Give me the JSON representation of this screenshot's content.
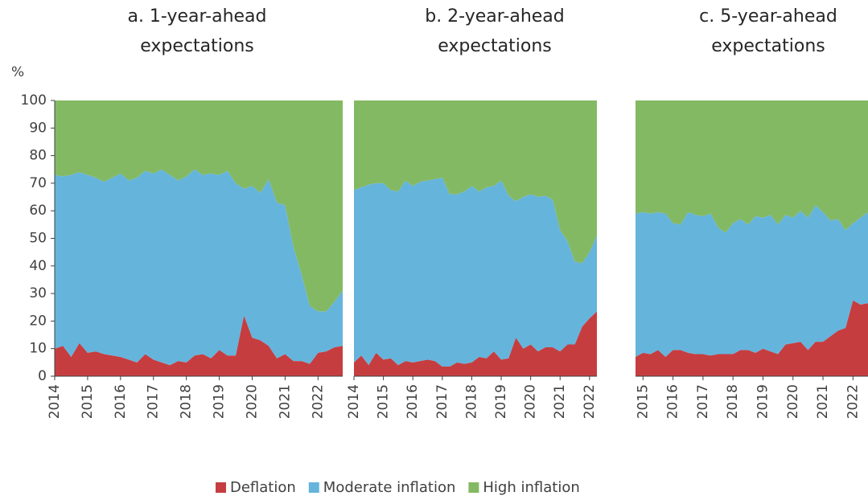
{
  "chart_data": [
    {
      "type": "stacked_area",
      "title": "a. 1-year-ahead expectations",
      "y_unit": "%",
      "x": [
        2014,
        2014.25,
        2014.5,
        2014.75,
        2015,
        2015.25,
        2015.5,
        2015.75,
        2016,
        2016.25,
        2016.5,
        2016.75,
        2017,
        2017.25,
        2017.5,
        2017.75,
        2018,
        2018.25,
        2018.5,
        2018.75,
        2019,
        2019.25,
        2019.5,
        2019.75,
        2020,
        2020.25,
        2020.5,
        2020.75,
        2021,
        2021.25,
        2021.5,
        2021.75,
        2022,
        2022.25,
        2022.5,
        2022.75
      ],
      "xlim": [
        2014,
        2022.75
      ],
      "xticks": [
        2014,
        2015,
        2016,
        2017,
        2018,
        2019,
        2020,
        2021,
        2022
      ],
      "ylim": [
        0,
        100
      ],
      "yticks": [
        0,
        10,
        20,
        30,
        40,
        50,
        60,
        70,
        80,
        90,
        100
      ],
      "series": [
        {
          "name": "Deflation",
          "color": "#c63d40",
          "values": [
            10,
            11,
            7,
            12,
            8.5,
            9,
            8,
            7.5,
            7,
            6,
            5,
            8,
            6,
            5,
            4,
            5.5,
            5,
            7.5,
            8,
            6.5,
            9.5,
            7.5,
            7.5,
            22,
            14,
            13,
            11,
            6.5,
            8,
            5.5,
            5.5,
            4.5,
            8.5,
            9,
            10.5,
            11
          ]
        },
        {
          "name": "Moderate inflation",
          "color": "#65b4dc",
          "values": [
            63,
            61.5,
            66,
            62,
            64.5,
            63,
            62.5,
            64.5,
            66.5,
            65,
            67,
            66.5,
            67.5,
            70,
            69,
            65.5,
            67.5,
            67.5,
            65,
            67,
            63.5,
            67,
            62.5,
            46,
            55,
            53.5,
            60.5,
            56.5,
            54,
            41.5,
            31.5,
            21,
            15,
            14.5,
            16.5,
            20
          ]
        },
        {
          "name": "High inflation",
          "color": "#84b964",
          "values": [
            27,
            27.5,
            27,
            26,
            27,
            28,
            29.5,
            28,
            26.5,
            29,
            28,
            25.5,
            26.5,
            25,
            27,
            29,
            27.5,
            25,
            27,
            26.5,
            27,
            25.5,
            30,
            32,
            31,
            33.5,
            28.5,
            37,
            38,
            53,
            63,
            74.5,
            76.5,
            76.5,
            73,
            69
          ]
        }
      ],
      "legend": "bottom"
    },
    {
      "type": "stacked_area",
      "title": "b. 2-year-ahead expectations",
      "x": [
        2014,
        2014.25,
        2014.5,
        2014.75,
        2015,
        2015.25,
        2015.5,
        2015.75,
        2016,
        2016.25,
        2016.5,
        2016.75,
        2017,
        2017.25,
        2017.5,
        2017.75,
        2018,
        2018.25,
        2018.5,
        2018.75,
        2019,
        2019.25,
        2019.5,
        2019.75,
        2020,
        2020.25,
        2020.5,
        2020.75,
        2021,
        2021.25,
        2021.5,
        2021.75,
        2022,
        2022.25
      ],
      "xlim": [
        2014,
        2022.25
      ],
      "xticks": [
        2014,
        2015,
        2016,
        2017,
        2018,
        2019,
        2020,
        2021,
        2022
      ],
      "ylim": [
        0,
        100
      ],
      "series": [
        {
          "name": "Deflation",
          "color": "#c63d40",
          "values": [
            5,
            7.5,
            4,
            8.5,
            6,
            6.5,
            4,
            5.5,
            5,
            5.5,
            6,
            5.5,
            3.5,
            3.5,
            5,
            4.5,
            5,
            7,
            6.5,
            9,
            6,
            6.5,
            14,
            10,
            11.5,
            9,
            10.5,
            10.5,
            9,
            11.5,
            11.5,
            18,
            21,
            23.5
          ]
        },
        {
          "name": "Moderate inflation",
          "color": "#65b4dc",
          "values": [
            62.5,
            61,
            65.5,
            61.5,
            64,
            61,
            63,
            65.5,
            64,
            65,
            65,
            66,
            68.5,
            62.5,
            61,
            62.5,
            64,
            60,
            62,
            60,
            65,
            59,
            49.5,
            55,
            54.5,
            56,
            55,
            53.5,
            44,
            37.5,
            30,
            23,
            24,
            27.5
          ]
        },
        {
          "name": "High inflation",
          "color": "#84b964",
          "values": [
            32.5,
            31.5,
            30.5,
            30,
            30,
            32.5,
            33,
            29,
            31,
            29.5,
            29,
            28.5,
            28,
            34,
            34,
            33,
            31,
            33,
            31.5,
            31,
            29,
            34.5,
            36.5,
            35,
            34,
            35,
            34.5,
            36,
            47,
            51,
            58.5,
            59,
            55,
            49
          ]
        }
      ]
    },
    {
      "type": "stacked_area",
      "title": "c. 5-year-ahead expectations",
      "x": [
        2014.75,
        2015,
        2015.25,
        2015.5,
        2015.75,
        2016,
        2016.25,
        2016.5,
        2016.75,
        2017,
        2017.25,
        2017.5,
        2017.75,
        2018,
        2018.25,
        2018.5,
        2018.75,
        2019,
        2019.25,
        2019.5,
        2019.75,
        2020,
        2020.25,
        2020.5,
        2020.75,
        2021,
        2021.25,
        2021.5,
        2021.75,
        2022,
        2022.25,
        2022.5
      ],
      "xlim": [
        2014.75,
        2022.5
      ],
      "xticks": [
        2015,
        2016,
        2017,
        2018,
        2019,
        2020,
        2021,
        2022
      ],
      "ylim": [
        0,
        100
      ],
      "series": [
        {
          "name": "Deflation",
          "color": "#c63d40",
          "values": [
            7,
            8.5,
            8,
            9.5,
            7,
            9.5,
            9.5,
            8.5,
            8,
            8,
            7.5,
            8,
            8,
            8,
            9.5,
            9.5,
            8.5,
            10,
            9,
            8,
            11.5,
            12,
            12.5,
            9.5,
            12.5,
            12.5,
            14.5,
            16.5,
            17.5,
            27.5,
            26,
            26.5
          ]
        },
        {
          "name": "Moderate inflation",
          "color": "#65b4dc",
          "values": [
            52,
            51,
            51,
            50,
            52,
            46,
            45.5,
            51,
            50.5,
            50,
            51.5,
            46,
            44,
            47.5,
            47.5,
            45.5,
            49.5,
            47.5,
            49.5,
            47,
            47,
            45.5,
            47.5,
            48,
            49.5,
            47,
            42,
            40.5,
            35.5,
            28,
            31.5,
            33
          ]
        },
        {
          "name": "High inflation",
          "color": "#84b964",
          "values": [
            41,
            40.5,
            41,
            40.5,
            41,
            44.5,
            45,
            40.5,
            41.5,
            42,
            41,
            46,
            48,
            44.5,
            43,
            45,
            42,
            42.5,
            41.5,
            45,
            41.5,
            42.5,
            40,
            42.5,
            38,
            40.5,
            43.5,
            43,
            47,
            44.5,
            42.5,
            40.5
          ]
        }
      ]
    }
  ]
}
